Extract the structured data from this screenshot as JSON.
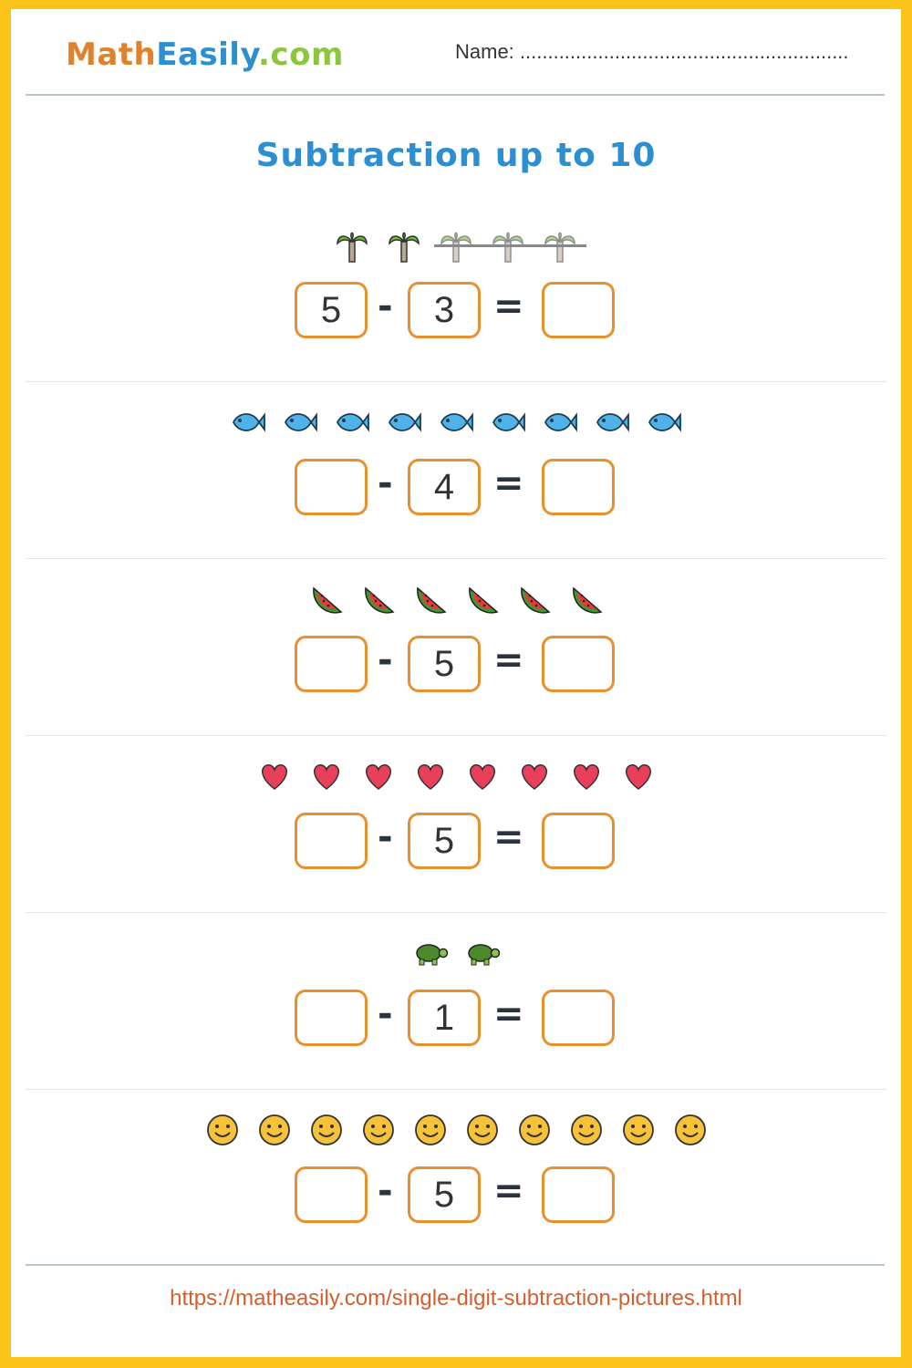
{
  "header": {
    "logo": {
      "part1": "Math",
      "part2": "Easily",
      "part3": ".com"
    },
    "name_label": "Name: ..........................................................."
  },
  "title": "Subtraction up to 10",
  "colors": {
    "border": "#fcc419",
    "accent_blue": "#2b8fd0",
    "box_orange": "#e8902f",
    "logo_orange": "#e0822b",
    "logo_green": "#8cc63f",
    "url_color": "#d2602f"
  },
  "problems": [
    {
      "icon": "palm-tree-icon",
      "count": 5,
      "crossed": 3,
      "minuend": "5",
      "subtrahend": "3",
      "answer": ""
    },
    {
      "icon": "fish-icon",
      "count": 9,
      "crossed": 0,
      "minuend": "",
      "subtrahend": "4",
      "answer": ""
    },
    {
      "icon": "watermelon-icon",
      "count": 6,
      "crossed": 0,
      "minuend": "",
      "subtrahend": "5",
      "answer": ""
    },
    {
      "icon": "heart-icon",
      "count": 8,
      "crossed": 0,
      "minuend": "",
      "subtrahend": "5",
      "answer": ""
    },
    {
      "icon": "turtle-icon",
      "count": 2,
      "crossed": 0,
      "minuend": "",
      "subtrahend": "1",
      "answer": ""
    },
    {
      "icon": "smiley-icon",
      "count": 10,
      "crossed": 0,
      "minuend": "",
      "subtrahend": "5",
      "answer": ""
    }
  ],
  "operators": {
    "minus": "-",
    "equals": "="
  },
  "footer": {
    "url": "https://matheasily.com/single-digit-subtraction-pictures.html"
  }
}
